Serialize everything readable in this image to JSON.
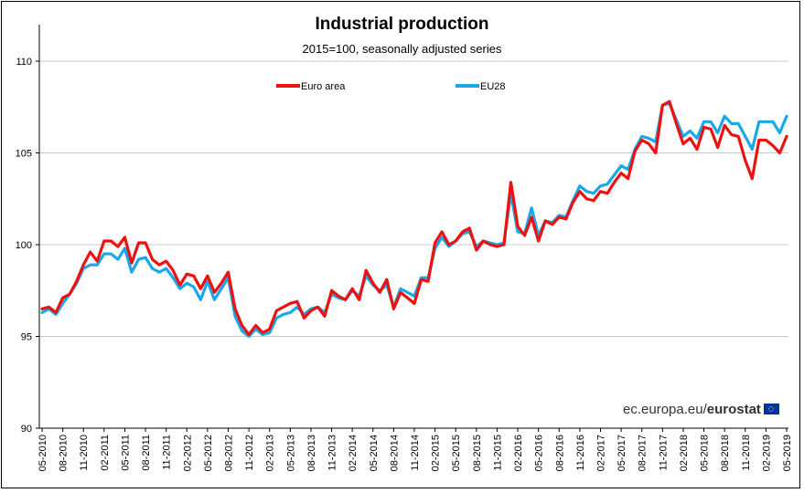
{
  "chart_data": {
    "type": "line",
    "title": "Industrial production",
    "subtitle": "2015=100, seasonally adjusted series",
    "xlabel": "",
    "ylabel": "",
    "ylim": [
      90,
      110
    ],
    "yticks": [
      "90",
      "95",
      "100",
      "105",
      "110"
    ],
    "x_start": "05-2010",
    "x_tick_labels": [
      "05-2010",
      "08-2010",
      "11-2010",
      "02-2011",
      "05-2011",
      "08-2011",
      "11-2011",
      "02-2012",
      "05-2012",
      "08-2012",
      "11-2012",
      "02-2013",
      "05-2013",
      "08-2013",
      "11-2013",
      "02-2014",
      "05-2014",
      "08-2014",
      "11-2014",
      "02-2015",
      "05-2015",
      "08-2015",
      "11-2015",
      "02-2016",
      "05-2016",
      "08-2016",
      "11-2016",
      "02-2017",
      "05-2017",
      "08-2017",
      "11-2017",
      "02-2018",
      "05-2018",
      "08-2018",
      "11-2018",
      "02-2019",
      "05-2019"
    ],
    "grid": true,
    "legend_position": "top",
    "series": [
      {
        "name": "Euro area",
        "color": "#ee1111",
        "values": [
          96.5,
          96.6,
          96.3,
          97.1,
          97.3,
          98.0,
          98.9,
          99.6,
          99.1,
          100.2,
          100.2,
          99.9,
          100.4,
          99.0,
          100.1,
          100.1,
          99.2,
          98.9,
          99.1,
          98.6,
          97.8,
          98.4,
          98.3,
          97.6,
          98.3,
          97.4,
          97.9,
          98.5,
          96.5,
          95.6,
          95.1,
          95.6,
          95.2,
          95.4,
          96.4,
          96.6,
          96.8,
          96.9,
          96.0,
          96.4,
          96.6,
          96.1,
          97.5,
          97.2,
          97.0,
          97.6,
          97.0,
          98.6,
          97.9,
          97.4,
          98.1,
          96.5,
          97.4,
          97.1,
          96.8,
          98.1,
          98.0,
          100.1,
          100.7,
          100.0,
          100.2,
          100.7,
          100.9,
          99.7,
          100.2,
          100.0,
          99.9,
          100.0,
          103.4,
          101.0,
          100.5,
          101.5,
          100.2,
          101.3,
          101.1,
          101.5,
          101.4,
          102.3,
          102.9,
          102.5,
          102.4,
          102.9,
          102.8,
          103.4,
          103.9,
          103.6,
          105.1,
          105.7,
          105.5,
          105.0,
          107.6,
          107.8,
          106.6,
          105.5,
          105.8,
          105.2,
          106.4,
          106.3,
          105.3,
          106.5,
          106.0,
          105.9,
          104.6,
          103.6,
          105.7,
          105.7,
          105.4,
          105.0,
          105.9
        ]
      },
      {
        "name": "EU28",
        "color": "#1aa9e8",
        "values": [
          96.3,
          96.5,
          96.2,
          96.8,
          97.3,
          97.9,
          98.7,
          98.9,
          98.9,
          99.5,
          99.5,
          99.2,
          99.8,
          98.5,
          99.2,
          99.3,
          98.7,
          98.5,
          98.7,
          98.2,
          97.6,
          97.9,
          97.7,
          97.0,
          98.0,
          97.0,
          97.6,
          98.2,
          96.1,
          95.3,
          95.0,
          95.4,
          95.1,
          95.2,
          96.0,
          96.2,
          96.3,
          96.6,
          96.2,
          96.5,
          96.6,
          96.3,
          97.3,
          97.1,
          97.0,
          97.5,
          97.2,
          98.3,
          97.8,
          97.5,
          97.8,
          96.6,
          97.6,
          97.4,
          97.2,
          98.2,
          98.2,
          99.8,
          100.4,
          99.9,
          100.2,
          100.6,
          100.7,
          99.9,
          100.2,
          100.1,
          100.0,
          100.1,
          102.8,
          100.7,
          100.6,
          102.0,
          100.5,
          101.3,
          101.2,
          101.6,
          101.5,
          102.4,
          103.2,
          102.9,
          102.8,
          103.2,
          103.3,
          103.8,
          104.3,
          104.1,
          105.2,
          105.9,
          105.8,
          105.6,
          107.6,
          107.7,
          106.8,
          105.9,
          106.2,
          105.8,
          106.7,
          106.7,
          106.1,
          107.0,
          106.6,
          106.6,
          105.9,
          105.2,
          106.7,
          106.7,
          106.7,
          106.1,
          107.0
        ]
      }
    ]
  },
  "watermark": {
    "prefix": "ec.europa.eu/",
    "brand": "eurostat"
  }
}
